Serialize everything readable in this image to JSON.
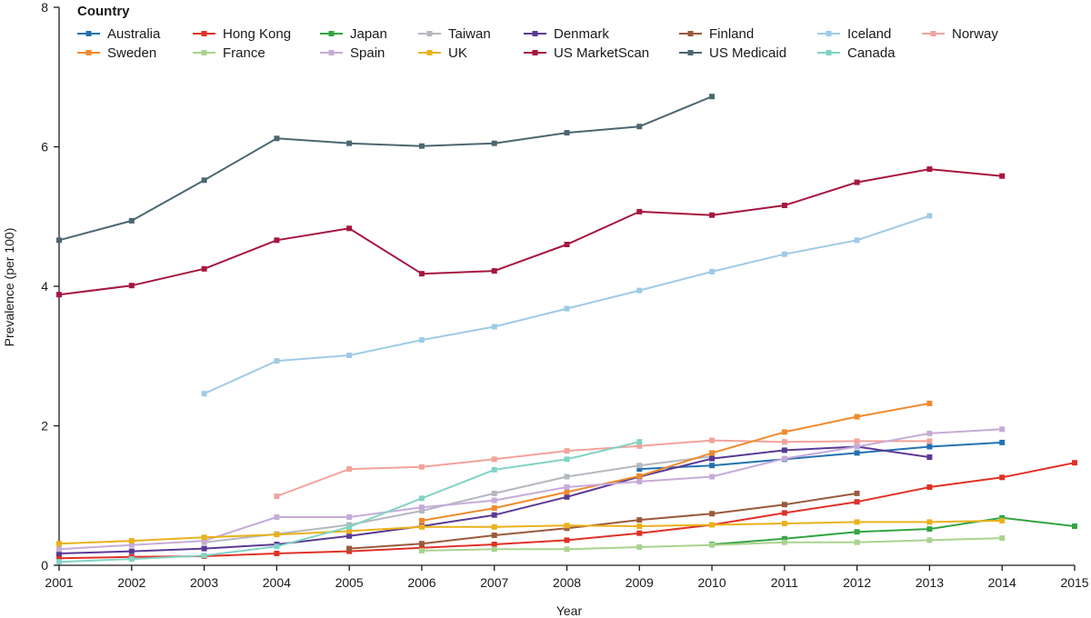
{
  "chart_data": {
    "type": "line",
    "xlabel": "Year",
    "ylabel": "Prevalence (per 100)",
    "legend_title": "Country",
    "legend_placement": "top-left",
    "grid": false,
    "xlim": [
      2001,
      2015
    ],
    "ylim": [
      0,
      8
    ],
    "y_ticks": [
      0,
      2,
      4,
      6,
      8
    ],
    "x": [
      2001,
      2002,
      2003,
      2004,
      2005,
      2006,
      2007,
      2008,
      2009,
      2010,
      2011,
      2012,
      2013,
      2014,
      2015
    ],
    "series": [
      {
        "name": "Australia",
        "color": "#2372b0",
        "values": [
          null,
          null,
          null,
          null,
          null,
          null,
          null,
          null,
          1.38,
          1.43,
          1.52,
          1.61,
          1.7,
          1.76,
          null
        ]
      },
      {
        "name": "Hong Kong",
        "color": "#e03127",
        "values": [
          0.1,
          0.12,
          0.13,
          0.17,
          0.2,
          0.25,
          0.3,
          0.36,
          0.46,
          0.58,
          0.75,
          0.91,
          1.12,
          1.26,
          1.47
        ]
      },
      {
        "name": "Japan",
        "color": "#33a542",
        "values": [
          null,
          null,
          null,
          null,
          null,
          null,
          null,
          null,
          null,
          0.3,
          0.38,
          0.48,
          0.52,
          0.68,
          0.56
        ]
      },
      {
        "name": "Taiwan",
        "color": "#b4b8bf",
        "values": [
          null,
          null,
          0.33,
          0.45,
          0.58,
          0.78,
          1.03,
          1.27,
          1.43,
          1.56,
          null,
          null,
          null,
          null,
          null
        ]
      },
      {
        "name": "Denmark",
        "color": "#5a3a94",
        "values": [
          0.17,
          0.2,
          0.24,
          0.3,
          0.42,
          0.56,
          0.72,
          0.98,
          1.27,
          1.53,
          1.65,
          1.7,
          1.55,
          null,
          null
        ]
      },
      {
        "name": "Finland",
        "color": "#9a5a3c",
        "values": [
          null,
          null,
          null,
          null,
          0.24,
          0.31,
          0.43,
          0.53,
          0.65,
          0.74,
          0.87,
          1.03,
          null,
          null,
          null
        ]
      },
      {
        "name": "Iceland",
        "color": "#9fcbe5",
        "values": [
          null,
          null,
          2.46,
          2.93,
          3.01,
          3.23,
          3.42,
          3.68,
          3.94,
          4.21,
          4.46,
          4.66,
          5.01,
          null,
          null
        ]
      },
      {
        "name": "Norway",
        "color": "#f2a39b",
        "values": [
          null,
          null,
          null,
          0.99,
          1.38,
          1.41,
          1.52,
          1.64,
          1.71,
          1.79,
          1.77,
          1.78,
          1.78,
          null,
          null
        ]
      },
      {
        "name": "Sweden",
        "color": "#f08a2c",
        "values": [
          null,
          null,
          null,
          null,
          null,
          0.64,
          0.82,
          1.05,
          1.28,
          1.61,
          1.91,
          2.13,
          2.32,
          null,
          null
        ]
      },
      {
        "name": "France",
        "color": "#a9d38f",
        "values": [
          null,
          null,
          null,
          null,
          null,
          0.21,
          0.23,
          0.23,
          0.26,
          0.29,
          0.33,
          0.33,
          0.36,
          0.39,
          null
        ]
      },
      {
        "name": "Spain",
        "color": "#c6abd8",
        "values": [
          0.23,
          0.29,
          0.35,
          0.69,
          0.69,
          0.83,
          0.93,
          1.12,
          1.2,
          1.27,
          1.53,
          1.7,
          1.89,
          1.95,
          null
        ]
      },
      {
        "name": "UK",
        "color": "#e9b11b",
        "values": [
          0.31,
          0.35,
          0.4,
          0.44,
          0.49,
          0.55,
          0.55,
          0.57,
          0.56,
          0.58,
          0.6,
          0.62,
          0.62,
          0.64,
          null
        ]
      },
      {
        "name": "US MarketScan",
        "color": "#a6163f",
        "values": [
          3.88,
          4.01,
          4.25,
          4.66,
          4.83,
          4.18,
          4.22,
          4.6,
          5.07,
          5.02,
          5.16,
          5.49,
          5.68,
          5.58,
          null
        ]
      },
      {
        "name": "US Medicaid",
        "color": "#4b6770",
        "values": [
          4.66,
          4.94,
          5.52,
          6.12,
          6.05,
          6.01,
          6.05,
          6.2,
          6.29,
          6.72,
          null,
          null,
          null,
          null,
          null
        ]
      },
      {
        "name": "Canada",
        "color": "#82d3c5",
        "values": [
          0.05,
          0.09,
          0.14,
          0.27,
          0.55,
          0.96,
          1.37,
          1.52,
          1.77,
          null,
          null,
          null,
          null,
          null,
          null
        ]
      }
    ]
  }
}
